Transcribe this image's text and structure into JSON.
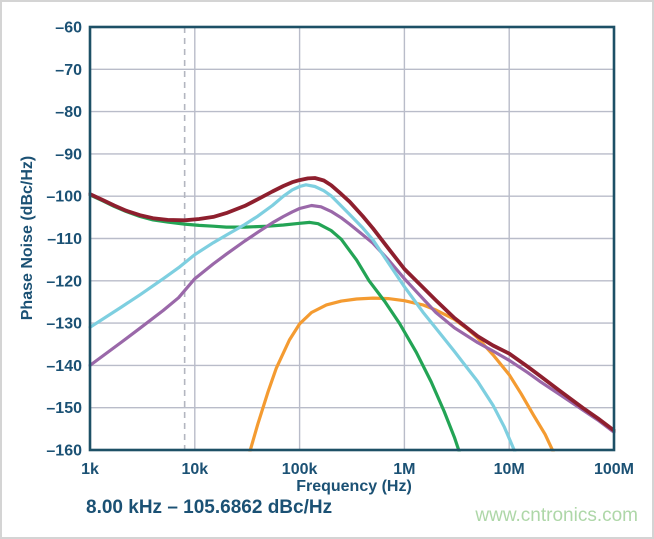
{
  "figure": {
    "annotation": "8.00 kHz – 105.6862 dBc/Hz",
    "watermark": "www.cntronics.com"
  },
  "colors": {
    "label_text": "#1b5174",
    "axis_border": "#1d5066",
    "grid": "#b9bcc9",
    "marker_dash": "#b3b6c0",
    "watermark": "#aed7a8",
    "plot_background": "#ffffff"
  },
  "chart_data": {
    "type": "line",
    "title": "",
    "xlabel": "Frequency (Hz)",
    "ylabel": "Phase Noise (dBc/Hz)",
    "x_scale": "log",
    "xlim": [
      1000,
      100000000
    ],
    "ylim": [
      -160,
      -60
    ],
    "grid": true,
    "legend": false,
    "x_ticks": [
      {
        "value": 1000,
        "label": "1k"
      },
      {
        "value": 10000,
        "label": "10k"
      },
      {
        "value": 100000,
        "label": "100k"
      },
      {
        "value": 1000000,
        "label": "1M"
      },
      {
        "value": 10000000,
        "label": "10M"
      },
      {
        "value": 100000000,
        "label": "100M"
      }
    ],
    "y_ticks": [
      {
        "value": -60,
        "label": "–60"
      },
      {
        "value": -70,
        "label": "–70"
      },
      {
        "value": -80,
        "label": "–80"
      },
      {
        "value": -90,
        "label": "–90"
      },
      {
        "value": -100,
        "label": "–100"
      },
      {
        "value": -110,
        "label": "–110"
      },
      {
        "value": -120,
        "label": "–120"
      },
      {
        "value": -130,
        "label": "–130"
      },
      {
        "value": -140,
        "label": "–140"
      },
      {
        "value": -150,
        "label": "–150"
      },
      {
        "value": -160,
        "label": "–160"
      }
    ],
    "marker_line": {
      "x": 8000,
      "style": "dashed",
      "annotation": "8.00 kHz – 105.6862 dBc/Hz"
    },
    "series": [
      {
        "name": "orange",
        "color": "#f49b31",
        "width": 3.2,
        "points": [
          [
            33000,
            -161.0
          ],
          [
            40000,
            -153.8
          ],
          [
            50000,
            -146.2
          ],
          [
            60000,
            -140.6
          ],
          [
            80000,
            -134.0
          ],
          [
            100000,
            -130.2
          ],
          [
            130000,
            -127.5
          ],
          [
            180000,
            -125.7
          ],
          [
            250000,
            -124.8
          ],
          [
            350000,
            -124.3
          ],
          [
            500000,
            -124.1
          ],
          [
            700000,
            -124.2
          ],
          [
            1000000,
            -124.7
          ],
          [
            1500000,
            -125.7
          ],
          [
            2000000,
            -126.9
          ],
          [
            3000000,
            -129.1
          ],
          [
            4000000,
            -131.4
          ],
          [
            5000000,
            -133.5
          ],
          [
            7000000,
            -137.5
          ],
          [
            10000000,
            -142.2
          ],
          [
            13000000,
            -146.7
          ],
          [
            17000000,
            -151.7
          ],
          [
            22000000,
            -156.3
          ],
          [
            27000000,
            -161.0
          ]
        ]
      },
      {
        "name": "green",
        "color": "#23a455",
        "width": 3.2,
        "points": [
          [
            1000,
            -99.7
          ],
          [
            1300,
            -101.0
          ],
          [
            1700,
            -102.4
          ],
          [
            2200,
            -103.6
          ],
          [
            3000,
            -104.8
          ],
          [
            4000,
            -105.6
          ],
          [
            5500,
            -106.1
          ],
          [
            8000,
            -106.6
          ],
          [
            11000,
            -106.9
          ],
          [
            15000,
            -107.1
          ],
          [
            20000,
            -107.3
          ],
          [
            30000,
            -107.3
          ],
          [
            50000,
            -107.1
          ],
          [
            70000,
            -106.8
          ],
          [
            100000,
            -106.4
          ],
          [
            125000,
            -106.2
          ],
          [
            150000,
            -106.5
          ],
          [
            200000,
            -108.1
          ],
          [
            250000,
            -110.2
          ],
          [
            350000,
            -115.1
          ],
          [
            460000,
            -120.0
          ],
          [
            650000,
            -124.9
          ],
          [
            900000,
            -130.1
          ],
          [
            1300000,
            -136.9
          ],
          [
            1800000,
            -143.9
          ],
          [
            2400000,
            -150.9
          ],
          [
            3000000,
            -157.0
          ],
          [
            3400000,
            -161.0
          ]
        ]
      },
      {
        "name": "purple",
        "color": "#9a68a9",
        "width": 3.2,
        "points": [
          [
            1000,
            -140.0
          ],
          [
            2000,
            -134.5
          ],
          [
            3000,
            -131.2
          ],
          [
            5000,
            -127.0
          ],
          [
            7000,
            -124.0
          ],
          [
            10000,
            -119.5
          ],
          [
            15000,
            -116.0
          ],
          [
            20000,
            -113.7
          ],
          [
            30000,
            -110.6
          ],
          [
            40000,
            -108.5
          ],
          [
            55000,
            -106.3
          ],
          [
            70000,
            -104.8
          ],
          [
            85000,
            -103.7
          ],
          [
            100000,
            -102.9
          ],
          [
            130000,
            -102.2
          ],
          [
            160000,
            -102.5
          ],
          [
            200000,
            -103.6
          ],
          [
            250000,
            -105.1
          ],
          [
            300000,
            -106.6
          ],
          [
            400000,
            -109.1
          ],
          [
            500000,
            -111.1
          ],
          [
            700000,
            -115.0
          ],
          [
            1000000,
            -119.5
          ],
          [
            1400000,
            -123.4
          ],
          [
            2000000,
            -127.5
          ],
          [
            3000000,
            -131.1
          ],
          [
            5000000,
            -134.6
          ],
          [
            7000000,
            -136.6
          ],
          [
            10000000,
            -138.8
          ],
          [
            15000000,
            -141.7
          ],
          [
            20000000,
            -143.9
          ],
          [
            30000000,
            -146.8
          ],
          [
            50000000,
            -150.5
          ],
          [
            70000000,
            -152.9
          ],
          [
            100000000,
            -155.8
          ]
        ]
      },
      {
        "name": "cyan",
        "color": "#7ecfe0",
        "width": 3.2,
        "points": [
          [
            1000,
            -131.0
          ],
          [
            2000,
            -126.2
          ],
          [
            3000,
            -123.3
          ],
          [
            5000,
            -119.5
          ],
          [
            7000,
            -116.9
          ],
          [
            10000,
            -113.8
          ],
          [
            15000,
            -111.0
          ],
          [
            20000,
            -109.2
          ],
          [
            30000,
            -106.7
          ],
          [
            40000,
            -104.7
          ],
          [
            55000,
            -102.2
          ],
          [
            70000,
            -100.0
          ],
          [
            85000,
            -98.5
          ],
          [
            100000,
            -97.7
          ],
          [
            115000,
            -97.3
          ],
          [
            140000,
            -97.7
          ],
          [
            170000,
            -98.7
          ],
          [
            200000,
            -99.9
          ],
          [
            300000,
            -104.3
          ],
          [
            400000,
            -107.5
          ],
          [
            500000,
            -110.3
          ],
          [
            700000,
            -115.7
          ],
          [
            1000000,
            -121.4
          ],
          [
            1500000,
            -127.4
          ],
          [
            2000000,
            -131.2
          ],
          [
            3000000,
            -136.7
          ],
          [
            4000000,
            -140.7
          ],
          [
            5000000,
            -143.8
          ],
          [
            7000000,
            -149.4
          ],
          [
            9000000,
            -154.6
          ],
          [
            11500000,
            -160.8
          ]
        ]
      },
      {
        "name": "dark-red",
        "color": "#8e1f2e",
        "width": 3.8,
        "points": [
          [
            1000,
            -99.5
          ],
          [
            1300,
            -100.8
          ],
          [
            1700,
            -102.2
          ],
          [
            2200,
            -103.4
          ],
          [
            3000,
            -104.5
          ],
          [
            4000,
            -105.2
          ],
          [
            5500,
            -105.6
          ],
          [
            8000,
            -105.7
          ],
          [
            11000,
            -105.4
          ],
          [
            15000,
            -104.9
          ],
          [
            20000,
            -104.0
          ],
          [
            30000,
            -102.3
          ],
          [
            40000,
            -100.7
          ],
          [
            55000,
            -98.9
          ],
          [
            70000,
            -97.6
          ],
          [
            85000,
            -96.7
          ],
          [
            100000,
            -96.2
          ],
          [
            120000,
            -95.8
          ],
          [
            140000,
            -95.7
          ],
          [
            170000,
            -96.3
          ],
          [
            200000,
            -97.4
          ],
          [
            250000,
            -99.5
          ],
          [
            300000,
            -101.3
          ],
          [
            400000,
            -104.7
          ],
          [
            500000,
            -107.6
          ],
          [
            700000,
            -112.3
          ],
          [
            1000000,
            -117.2
          ],
          [
            1400000,
            -120.8
          ],
          [
            2000000,
            -124.6
          ],
          [
            3000000,
            -128.8
          ],
          [
            5000000,
            -133.1
          ],
          [
            7000000,
            -135.3
          ],
          [
            10000000,
            -137.2
          ],
          [
            15000000,
            -140.3
          ],
          [
            20000000,
            -142.6
          ],
          [
            30000000,
            -145.9
          ],
          [
            50000000,
            -150.0
          ],
          [
            70000000,
            -152.5
          ],
          [
            100000000,
            -155.4
          ]
        ]
      }
    ]
  }
}
